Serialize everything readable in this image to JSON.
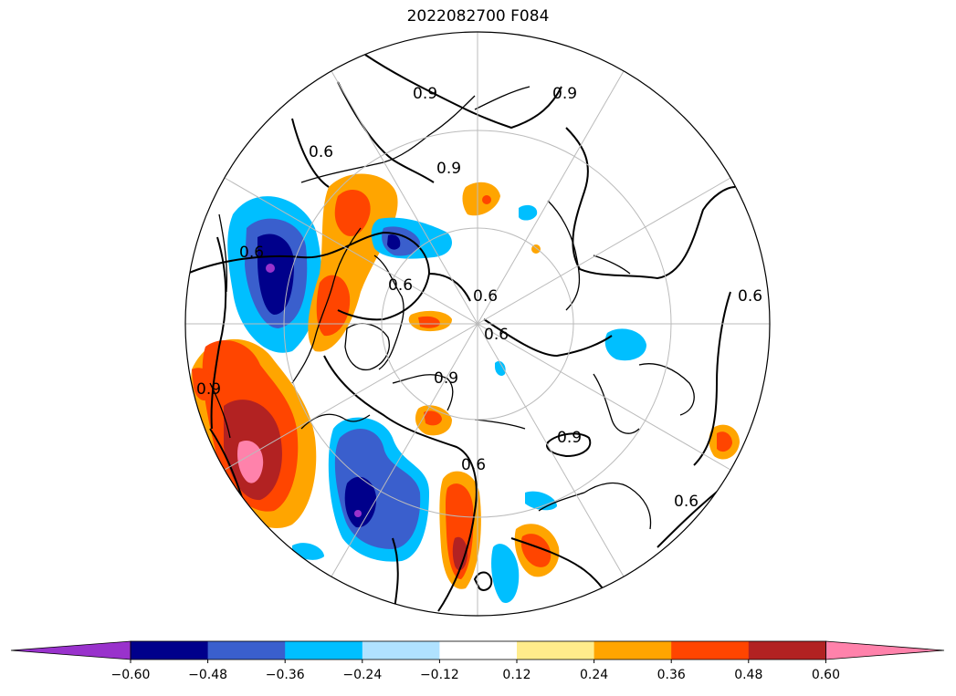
{
  "title": "2022082700 F084",
  "map": {
    "projection": "north-polar-stereographic",
    "contour_lines": {
      "color": "#000000",
      "labels": [
        "0.9",
        "0.9",
        "0.6",
        "0.9",
        "0.6",
        "0.6",
        "0.9",
        "0.6",
        "0.9",
        "0.6",
        "0.6",
        "0.9",
        "0.6",
        "0.6"
      ]
    },
    "fill_colors": {
      "le_-0.60": "#9932cc",
      "-0.60_-0.48": "#00008b",
      "-0.48_-0.36": "#3a5fcd",
      "-0.36_-0.24": "#00bfff",
      "-0.24_-0.12": "#b0e2ff",
      "-0.12_0.12": "#ffffff",
      "0.12_0.24": "#ffec8b",
      "0.24_0.36": "#ffa500",
      "0.36_0.48": "#ff4500",
      "0.48_0.60": "#b22222",
      "ge_0.60": "#ff82ab"
    }
  },
  "colorbar": {
    "extend": "both",
    "colors": [
      "#9932cc",
      "#00008b",
      "#3a5fcd",
      "#00bfff",
      "#b0e2ff",
      "#ffffff",
      "#ffec8b",
      "#ffa500",
      "#ff4500",
      "#b22222",
      "#ff82ab"
    ],
    "ticks": [
      "−0.60",
      "−0.48",
      "−0.36",
      "−0.24",
      "−0.12",
      "0.12",
      "0.24",
      "0.36",
      "0.48",
      "0.60"
    ]
  }
}
